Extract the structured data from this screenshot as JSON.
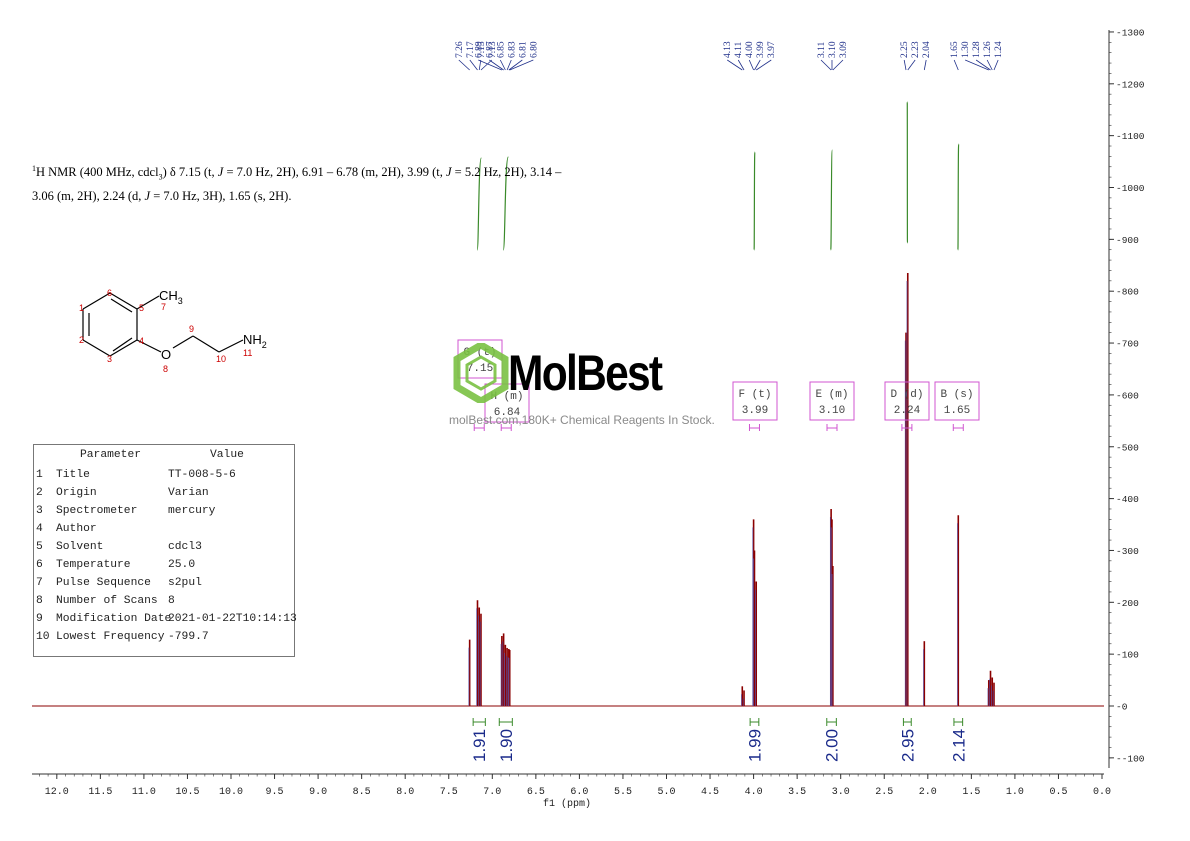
{
  "caption": {
    "nucleus_sup": "1",
    "line1_a": "H NMR (400 MHz, cdcl",
    "line1_sub": "3",
    "line1_b": ") δ 7.15 (t, ",
    "J": "J",
    "line1_c": " = 7.0 Hz, 2H), 6.91 – 6.78 (m, 2H), 3.99 (t, ",
    "line1_d": " = 5.2 Hz, 2H), 3.14 –",
    "line2_a": "3.06 (m, 2H), 2.24 (d, ",
    "line2_b": " = 7.0 Hz, 3H), 1.65 (s, 2H)."
  },
  "molecule": {
    "labels": {
      "ch3": "CH",
      "ch3_sub": "3",
      "o": "O",
      "nh2": "NH",
      "nh2_sub": "2",
      "n1": "1",
      "n2": "2",
      "n3": "3",
      "n4": "4",
      "n5": "5",
      "n6": "6",
      "n7": "7",
      "n8": "8",
      "n9": "9",
      "n10": "10",
      "n11": "11"
    }
  },
  "params": {
    "header_param": "Parameter",
    "header_value": "Value",
    "rows": [
      {
        "n": "1",
        "k": "Title",
        "v": "TT-008-5-6"
      },
      {
        "n": "2",
        "k": "Origin",
        "v": "Varian"
      },
      {
        "n": "3",
        "k": "Spectrometer",
        "v": "mercury"
      },
      {
        "n": "4",
        "k": "Author",
        "v": ""
      },
      {
        "n": "5",
        "k": "Solvent",
        "v": "cdcl3"
      },
      {
        "n": "6",
        "k": "Temperature",
        "v": "25.0"
      },
      {
        "n": "7",
        "k": "Pulse Sequence",
        "v": "s2pul"
      },
      {
        "n": "8",
        "k": "Number of Scans",
        "v": "8"
      },
      {
        "n": "9",
        "k": "Modification Date",
        "v": "2021-01-22T10:14:13"
      },
      {
        "n": "10",
        "k": "Lowest Frequency",
        "v": "-799.7"
      }
    ]
  },
  "watermark": {
    "brand": "MolBest",
    "text": "molBest.com,180K+ Chemical Reagents In Stock."
  },
  "chart_data": {
    "type": "line",
    "title": "",
    "xlabel": "f1 (ppm)",
    "ylabel": "",
    "xlim": [
      12.25,
      0.0
    ],
    "ylim": [
      -130,
      1310
    ],
    "x_ticks": [
      "12.0",
      "11.5",
      "11.0",
      "10.5",
      "10.0",
      "9.5",
      "9.0",
      "8.5",
      "8.0",
      "7.5",
      "7.0",
      "6.5",
      "6.0",
      "5.5",
      "5.0",
      "4.5",
      "4.0",
      "3.5",
      "3.0",
      "2.5",
      "2.0",
      "1.5",
      "1.0",
      "0.5",
      "0.0"
    ],
    "y_ticks": [
      "1300",
      "1200",
      "1100",
      "1000",
      "900",
      "800",
      "700",
      "600",
      "500",
      "400",
      "300",
      "200",
      "100",
      "0",
      "-100"
    ],
    "peaks": [
      {
        "ppm": 7.26,
        "h": 128
      },
      {
        "ppm": 7.17,
        "h": 204
      },
      {
        "ppm": 7.15,
        "h": 190
      },
      {
        "ppm": 7.13,
        "h": 178
      },
      {
        "ppm": 6.89,
        "h": 135
      },
      {
        "ppm": 6.87,
        "h": 140
      },
      {
        "ppm": 6.85,
        "h": 118
      },
      {
        "ppm": 6.83,
        "h": 112
      },
      {
        "ppm": 6.81,
        "h": 110
      },
      {
        "ppm": 6.8,
        "h": 108
      },
      {
        "ppm": 4.13,
        "h": 38
      },
      {
        "ppm": 4.11,
        "h": 30
      },
      {
        "ppm": 4.0,
        "h": 360
      },
      {
        "ppm": 3.99,
        "h": 300
      },
      {
        "ppm": 3.97,
        "h": 240
      },
      {
        "ppm": 3.11,
        "h": 380
      },
      {
        "ppm": 3.1,
        "h": 360
      },
      {
        "ppm": 3.09,
        "h": 270
      },
      {
        "ppm": 2.25,
        "h": 720
      },
      {
        "ppm": 2.23,
        "h": 835
      },
      {
        "ppm": 2.04,
        "h": 125
      },
      {
        "ppm": 1.65,
        "h": 368
      },
      {
        "ppm": 1.3,
        "h": 50
      },
      {
        "ppm": 1.28,
        "h": 68
      },
      {
        "ppm": 1.26,
        "h": 55
      },
      {
        "ppm": 1.24,
        "h": 45
      }
    ],
    "peak_labels": [
      {
        "group": "left",
        "values": [
          "7.26",
          "7.17",
          "7.15",
          "7.13"
        ],
        "ppm": [
          7.26,
          7.17,
          7.15,
          7.13
        ]
      },
      {
        "group": "left",
        "values": [
          "6.89",
          "6.87",
          "6.85",
          "6.83",
          "6.81",
          "6.80"
        ],
        "ppm": [
          6.89,
          6.87,
          6.85,
          6.83,
          6.81,
          6.8
        ]
      },
      {
        "group": "mid",
        "values": [
          "4.13",
          "4.11",
          "4.00",
          "3.99",
          "3.97"
        ],
        "ppm": [
          4.13,
          4.11,
          4.0,
          3.99,
          3.97
        ]
      },
      {
        "group": "mid",
        "values": [
          "3.11",
          "3.10",
          "3.09"
        ],
        "ppm": [
          3.11,
          3.1,
          3.09
        ]
      },
      {
        "group": "right",
        "values": [
          "2.25",
          "2.23",
          "2.04"
        ],
        "ppm": [
          2.25,
          2.23,
          2.04
        ]
      },
      {
        "group": "right",
        "values": [
          "1.65",
          "1.30",
          "1.28",
          "1.26",
          "1.24"
        ],
        "ppm": [
          1.65,
          1.3,
          1.28,
          1.26,
          1.24
        ]
      }
    ],
    "multiplets": [
      {
        "letter": "G (t)",
        "shift": "7.15",
        "ppm": 7.15
      },
      {
        "letter": "H (m)",
        "shift": "6.84",
        "ppm": 6.84
      },
      {
        "letter": "F (t)",
        "shift": "3.99",
        "ppm": 3.99
      },
      {
        "letter": "E (m)",
        "shift": "3.10",
        "ppm": 3.1
      },
      {
        "letter": "D (d)",
        "shift": "2.24",
        "ppm": 2.24
      },
      {
        "letter": "B (s)",
        "shift": "1.65",
        "ppm": 1.65
      }
    ],
    "integrals": [
      {
        "value": "1.91",
        "from": 7.22,
        "to": 7.08
      },
      {
        "value": "1.90",
        "from": 6.92,
        "to": 6.77
      },
      {
        "value": "1.99",
        "from": 4.04,
        "to": 3.94
      },
      {
        "value": "2.00",
        "from": 3.16,
        "to": 3.05
      },
      {
        "value": "2.95",
        "from": 2.28,
        "to": 2.19
      },
      {
        "value": "2.14",
        "from": 1.7,
        "to": 1.6
      }
    ],
    "colors": {
      "spectrum": "#8b0000",
      "integral_curve": "#3a8a2a",
      "multiplet_box": "#d055d0",
      "peak_label": "#20308a",
      "integral_label": "#1a2a8a",
      "axis": "#333333",
      "atom_number": "#cc0000"
    }
  }
}
